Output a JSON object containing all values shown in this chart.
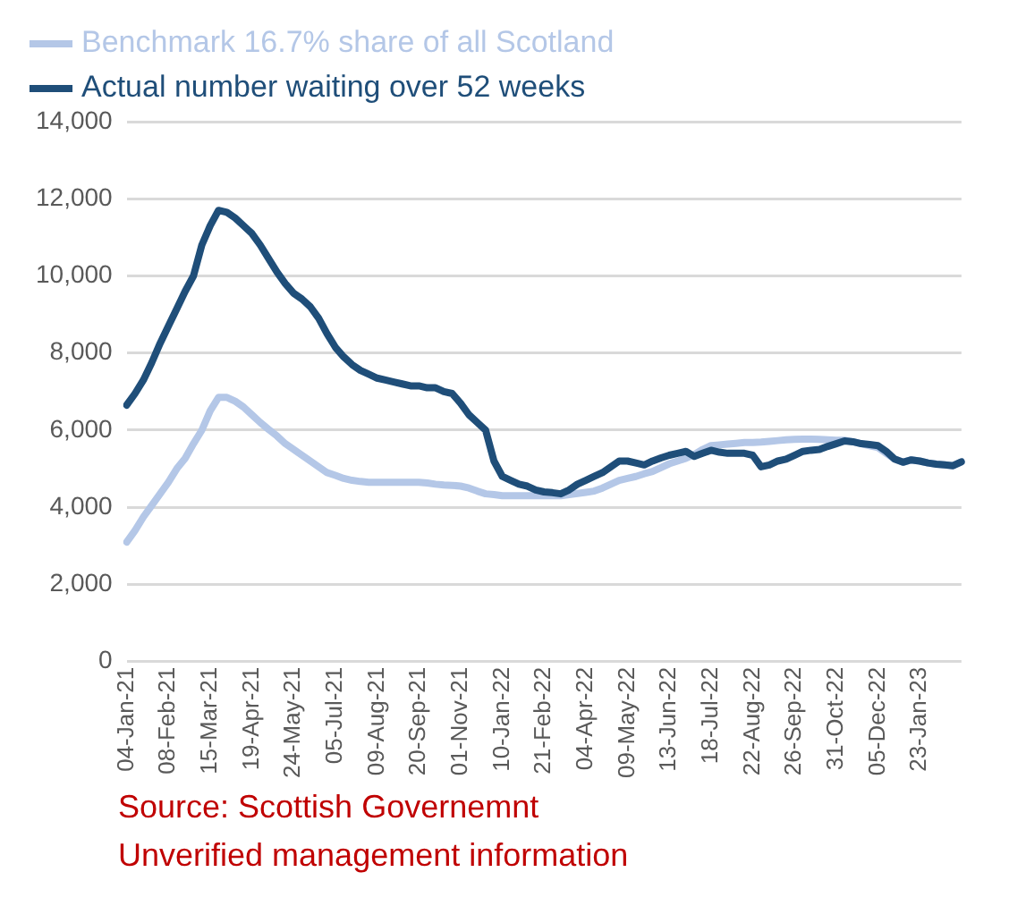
{
  "chart_data": {
    "type": "line",
    "categories": [
      "04-Jan-21",
      null,
      null,
      null,
      null,
      "08-Feb-21",
      null,
      null,
      null,
      null,
      "15-Mar-21",
      null,
      null,
      null,
      null,
      "19-Apr-21",
      null,
      null,
      null,
      null,
      "24-May-21",
      null,
      null,
      null,
      null,
      "05-Jul-21",
      null,
      null,
      null,
      null,
      "09-Aug-21",
      null,
      null,
      null,
      null,
      "20-Sep-21",
      null,
      null,
      null,
      null,
      "01-Nov-21",
      null,
      null,
      null,
      null,
      "10-Jan-22",
      null,
      null,
      null,
      null,
      "21-Feb-22",
      null,
      null,
      null,
      null,
      "04-Apr-22",
      null,
      null,
      null,
      null,
      "09-May-22",
      null,
      null,
      null,
      null,
      "13-Jun-22",
      null,
      null,
      null,
      null,
      "18-Jul-22",
      null,
      null,
      null,
      null,
      "22-Aug-22",
      null,
      null,
      null,
      null,
      "26-Sep-22",
      null,
      null,
      null,
      null,
      "31-Oct-22",
      null,
      null,
      null,
      null,
      "05-Dec-22",
      null,
      null,
      null,
      null,
      "23-Jan-23",
      null,
      null,
      null,
      null,
      null
    ],
    "series": [
      {
        "name": "Benchmark 16.7% share of all Scotland",
        "color": "#b4c7e7",
        "values": [
          3100,
          3400,
          3750,
          4050,
          4350,
          4650,
          5000,
          5270,
          5650,
          6000,
          6500,
          6850,
          6850,
          6750,
          6600,
          6400,
          6200,
          6020,
          5850,
          5650,
          5500,
          5350,
          5200,
          5050,
          4900,
          4830,
          4750,
          4700,
          4670,
          4650,
          4650,
          4650,
          4650,
          4650,
          4650,
          4650,
          4630,
          4600,
          4580,
          4570,
          4550,
          4500,
          4420,
          4350,
          4330,
          4300,
          4300,
          4300,
          4300,
          4300,
          4300,
          4300,
          4300,
          4330,
          4360,
          4390,
          4420,
          4500,
          4600,
          4700,
          4750,
          4800,
          4870,
          4930,
          5030,
          5130,
          5200,
          5270,
          5370,
          5500,
          5600,
          5620,
          5640,
          5660,
          5680,
          5680,
          5690,
          5710,
          5730,
          5750,
          5760,
          5770,
          5770,
          5760,
          5750,
          5740,
          5740,
          5700,
          5650,
          5600,
          5550,
          5400,
          5250,
          5170,
          5230,
          5200,
          5150,
          5120,
          5100,
          5080,
          5180
        ]
      },
      {
        "name": "Actual number waiting over 52 weeks",
        "color": "#1f4e79",
        "values": [
          6650,
          6950,
          7300,
          7750,
          8250,
          8700,
          9150,
          9600,
          10000,
          10800,
          11300,
          11700,
          11650,
          11500,
          11300,
          11100,
          10800,
          10450,
          10100,
          9800,
          9550,
          9400,
          9200,
          8900,
          8500,
          8150,
          7900,
          7700,
          7550,
          7450,
          7350,
          7300,
          7250,
          7200,
          7150,
          7150,
          7100,
          7100,
          7000,
          6950,
          6700,
          6400,
          6200,
          6000,
          5200,
          4800,
          4700,
          4600,
          4550,
          4450,
          4400,
          4380,
          4350,
          4450,
          4600,
          4700,
          4800,
          4900,
          5050,
          5200,
          5200,
          5150,
          5100,
          5200,
          5280,
          5350,
          5400,
          5450,
          5320,
          5400,
          5480,
          5430,
          5400,
          5400,
          5400,
          5350,
          5050,
          5100,
          5200,
          5250,
          5350,
          5450,
          5480,
          5500,
          5580,
          5650,
          5720,
          5700,
          5650,
          5630,
          5600,
          5450,
          5250,
          5170,
          5230,
          5200,
          5150,
          5120,
          5100,
          5080,
          5180
        ]
      }
    ],
    "ylim": [
      0,
      14000
    ],
    "yticks": [
      0,
      {
        "value": 2000,
        "label": "2,000"
      },
      {
        "value": 4000,
        "label": "4,000"
      },
      {
        "value": 6000,
        "label": "6,000"
      },
      {
        "value": 8000,
        "label": "8,000"
      },
      {
        "value": 10000,
        "label": "10,000"
      },
      {
        "value": 12000,
        "label": "12,000"
      },
      {
        "value": 14000,
        "label": "14,000"
      }
    ],
    "grid": "y",
    "legend": "top left",
    "marker": "none",
    "line_style": "solid",
    "annotations": [
      "Source: Scottish Governemnt",
      "Unverified management information"
    ]
  }
}
